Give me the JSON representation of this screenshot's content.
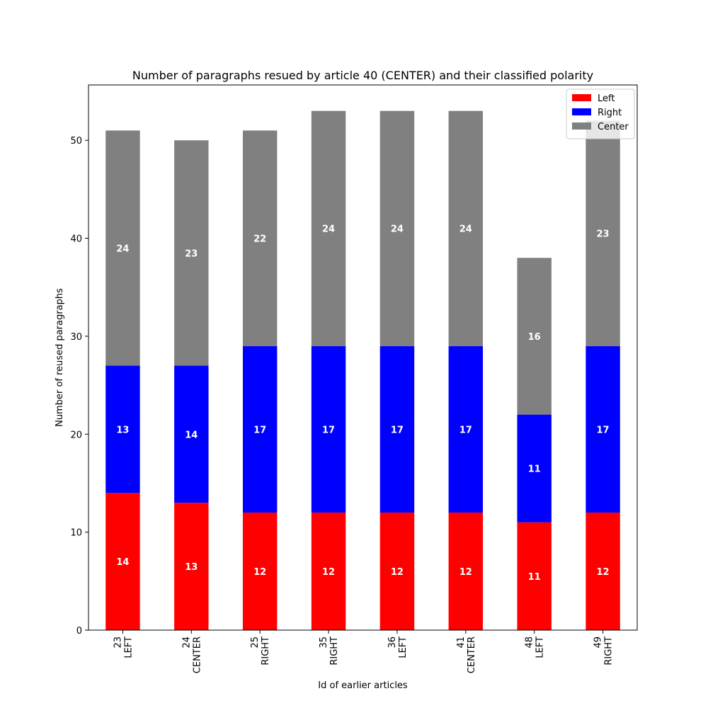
{
  "chart_data": {
    "type": "bar",
    "stacked": true,
    "title": "Number of paragraphs resued by article 40 (CENTER) and their classified polarity",
    "xlabel": "Id of earlier articles",
    "ylabel": "Number of reused paragraphs",
    "categories": [
      [
        "23",
        "LEFT"
      ],
      [
        "24",
        "CENTER"
      ],
      [
        "25",
        "RIGHT"
      ],
      [
        "35",
        "RIGHT"
      ],
      [
        "36",
        "LEFT"
      ],
      [
        "41",
        "CENTER"
      ],
      [
        "48",
        "LEFT"
      ],
      [
        "49",
        "RIGHT"
      ]
    ],
    "series": [
      {
        "name": "Left",
        "color": "#ff0000",
        "values": [
          14,
          13,
          12,
          12,
          12,
          12,
          11,
          12
        ]
      },
      {
        "name": "Right",
        "color": "#0000ff",
        "values": [
          13,
          14,
          17,
          17,
          17,
          17,
          11,
          17
        ]
      },
      {
        "name": "Center",
        "color": "#808080",
        "values": [
          24,
          23,
          22,
          24,
          24,
          24,
          16,
          23
        ]
      }
    ],
    "ylim": [
      0,
      55.65
    ],
    "yticks": [
      0,
      10,
      20,
      30,
      40,
      50
    ],
    "grid": false,
    "legend_position": "top-right"
  }
}
